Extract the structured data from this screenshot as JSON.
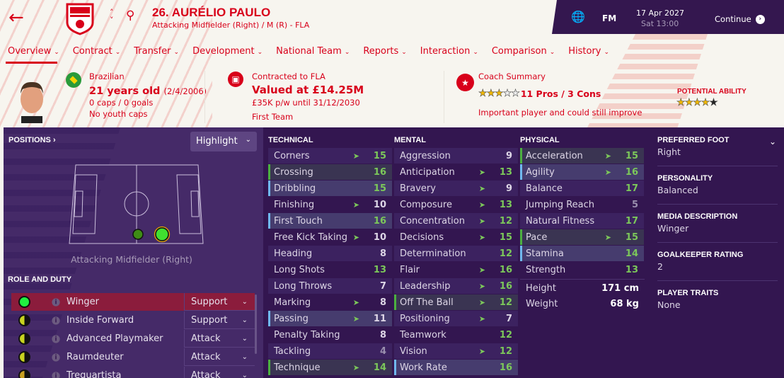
{
  "header": {
    "title": "26. AURÉLIO PAULO",
    "subtitle": "Attacking Midfielder (Right) / M (R) - FLA",
    "back_icon": "arrow-left-icon",
    "search_icon": "search-icon"
  },
  "topbar": {
    "date": "17 Apr 2027",
    "time": "Sat 13:00",
    "logo": "FM",
    "continue_label": "Continue"
  },
  "tabs": [
    {
      "label": "Overview",
      "active": true
    },
    {
      "label": "Contract"
    },
    {
      "label": "Transfer"
    },
    {
      "label": "Development"
    },
    {
      "label": "National Team"
    },
    {
      "label": "Reports"
    },
    {
      "label": "Interaction"
    },
    {
      "label": "Comparison"
    },
    {
      "label": "History"
    }
  ],
  "bio": {
    "nationality": "Brazilian",
    "age": "21 years old",
    "dob": "(2/4/2006)",
    "caps": "0 caps / 0 goals",
    "youth": "No youth caps"
  },
  "contract": {
    "club": "Contracted to FLA",
    "value": "Valued at £14.25M",
    "wage": "£35K p/w until 31/12/2030",
    "status": "First Team"
  },
  "coach": {
    "label": "Coach Summary",
    "stars": 3.5,
    "pros_cons": "11 Pros / 3 Cons",
    "summary": "Important player and could still improve",
    "potential_label": "POTENTIAL ABILITY",
    "potential_stars": 4
  },
  "positions": {
    "title": "POSITIONS ›",
    "highlight": "Highlight",
    "position_label": "Attacking Midfielder (Right)",
    "role_title": "ROLE AND DUTY",
    "roles": [
      {
        "name": "Winger",
        "duty": "Support",
        "rating": "natural",
        "selected": true
      },
      {
        "name": "Inside Forward",
        "duty": "Support",
        "rating": "half"
      },
      {
        "name": "Advanced Playmaker",
        "duty": "Attack",
        "rating": "half"
      },
      {
        "name": "Raumdeuter",
        "duty": "Attack",
        "rating": "half"
      },
      {
        "name": "Trequartista",
        "duty": "Attack",
        "rating": "halfdark"
      }
    ]
  },
  "technical": {
    "title": "TECHNICAL",
    "rows": [
      {
        "name": "Corners",
        "value": 15,
        "arrow": true
      },
      {
        "name": "Crossing",
        "value": 16,
        "hl": "green"
      },
      {
        "name": "Dribbling",
        "value": 15,
        "hl": "blue"
      },
      {
        "name": "Finishing",
        "value": 10,
        "arrow": true
      },
      {
        "name": "First Touch",
        "value": 16,
        "hl": "blue"
      },
      {
        "name": "Free Kick Taking",
        "value": 10,
        "arrow": true
      },
      {
        "name": "Heading",
        "value": 8
      },
      {
        "name": "Long Shots",
        "value": 13
      },
      {
        "name": "Long Throws",
        "value": 7
      },
      {
        "name": "Marking",
        "value": 8,
        "arrow": true
      },
      {
        "name": "Passing",
        "value": 11,
        "arrow": true,
        "hl": "blue"
      },
      {
        "name": "Penalty Taking",
        "value": 8
      },
      {
        "name": "Tackling",
        "value": 4
      },
      {
        "name": "Technique",
        "value": 14,
        "arrow": true,
        "hl": "green"
      }
    ]
  },
  "mental": {
    "title": "MENTAL",
    "rows": [
      {
        "name": "Aggression",
        "value": 9
      },
      {
        "name": "Anticipation",
        "value": 13,
        "arrow": true
      },
      {
        "name": "Bravery",
        "value": 9,
        "arrow": true
      },
      {
        "name": "Composure",
        "value": 13,
        "arrow": true
      },
      {
        "name": "Concentration",
        "value": 12,
        "arrow": true
      },
      {
        "name": "Decisions",
        "value": 15,
        "arrow": true
      },
      {
        "name": "Determination",
        "value": 12
      },
      {
        "name": "Flair",
        "value": 16,
        "arrow": true
      },
      {
        "name": "Leadership",
        "value": 16,
        "arrow": true
      },
      {
        "name": "Off The Ball",
        "value": 12,
        "arrow": true,
        "hl": "green"
      },
      {
        "name": "Positioning",
        "value": 7,
        "arrow": true
      },
      {
        "name": "Teamwork",
        "value": 12
      },
      {
        "name": "Vision",
        "value": 12,
        "arrow": true
      },
      {
        "name": "Work Rate",
        "value": 16,
        "hl": "blue"
      }
    ]
  },
  "physical": {
    "title": "PHYSICAL",
    "rows": [
      {
        "name": "Acceleration",
        "value": 15,
        "arrow": true,
        "hl": "green"
      },
      {
        "name": "Agility",
        "value": 16,
        "arrow": true,
        "hl": "blue"
      },
      {
        "name": "Balance",
        "value": 17
      },
      {
        "name": "Jumping Reach",
        "value": 5
      },
      {
        "name": "Natural Fitness",
        "value": 17
      },
      {
        "name": "Pace",
        "value": 15,
        "arrow": true,
        "hl": "green"
      },
      {
        "name": "Stamina",
        "value": 14,
        "hl": "blue"
      },
      {
        "name": "Strength",
        "value": 13
      }
    ],
    "height_label": "Height",
    "height": "171 cm",
    "weight_label": "Weight",
    "weight": "68 kg"
  },
  "details": [
    {
      "label": "PREFERRED FOOT",
      "value": "Right"
    },
    {
      "label": "PERSONALITY",
      "value": "Balanced"
    },
    {
      "label": "MEDIA DESCRIPTION",
      "value": "Winger"
    },
    {
      "label": "GOALKEEPER RATING",
      "value": "2"
    },
    {
      "label": "PLAYER TRAITS",
      "value": "None"
    }
  ],
  "colors": {
    "accent": "#d8001a",
    "panel": "#331650",
    "good": "#7cc85a"
  }
}
